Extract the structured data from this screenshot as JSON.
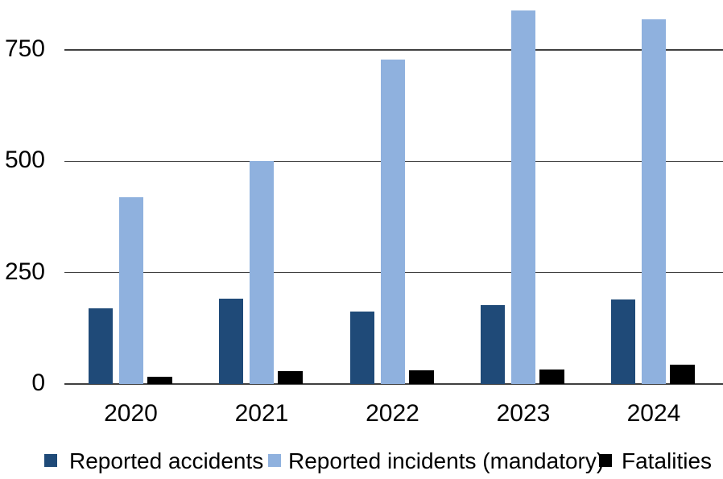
{
  "chart_data": {
    "type": "bar",
    "title": "",
    "categories": [
      "2020",
      "2021",
      "2022",
      "2023",
      "2024"
    ],
    "series": [
      {
        "name": "Reported accidents",
        "color": "#1F4A78",
        "values": [
          170,
          192,
          163,
          178,
          190
        ]
      },
      {
        "name": "Reported incidents (mandatory)",
        "color": "#8FB1DE",
        "values": [
          420,
          500,
          728,
          838,
          818
        ]
      },
      {
        "name": "Fatalities",
        "color": "#000000",
        "values": [
          16,
          29,
          31,
          32,
          44
        ]
      }
    ],
    "xlabel": "",
    "ylabel": "",
    "yticks": [
      0,
      250,
      500,
      750
    ],
    "ylim": [
      0,
      875
    ],
    "grid": true,
    "gridline_color": "#404040",
    "background_color": "#ffffff",
    "legend_position": "bottom"
  }
}
